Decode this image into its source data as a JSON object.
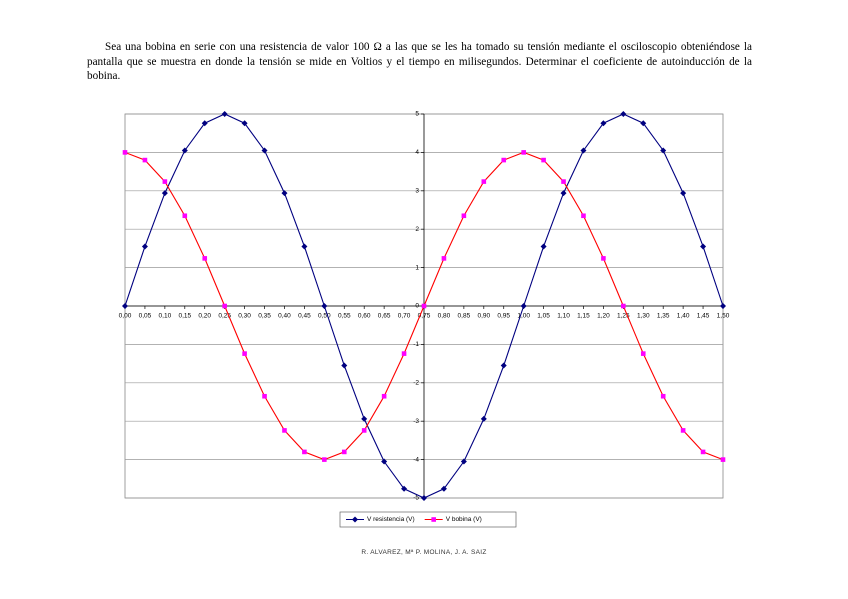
{
  "text": "Sea una bobina en serie con una resistencia de valor 100 Ω a las que se les ha tomado su tensión mediante el osciloscopio obteniéndose la pantalla que se muestra en donde la tensión se mide en Voltios y el tiempo en milisegundos. Determinar el coeficiente de autoinducción de la bobina.",
  "footer": "R. ALVAREZ, Mª P. MOLINA, J. A. SAIZ",
  "chart_data": {
    "type": "line",
    "categories": [
      "0,00",
      "0,05",
      "0,10",
      "0,15",
      "0,20",
      "0,25",
      "0,30",
      "0,35",
      "0,40",
      "0,45",
      "0,50",
      "0,55",
      "0,60",
      "0,65",
      "0,70",
      "0,75",
      "0,80",
      "0,85",
      "0,90",
      "0,95",
      "1,00",
      "1,05",
      "1,10",
      "1,15",
      "1,20",
      "1,25",
      "1,30",
      "1,35",
      "1,40",
      "1,45",
      "1,50"
    ],
    "series": [
      {
        "name": "V resistencia (V)",
        "color": "#000080",
        "marker": "diamond",
        "marker_color": "#000080",
        "values": [
          0,
          1.55,
          2.94,
          4.05,
          4.76,
          5,
          4.76,
          4.05,
          2.94,
          1.55,
          0,
          -1.55,
          -2.94,
          -4.05,
          -4.76,
          -5,
          -4.76,
          -4.05,
          -2.94,
          -1.55,
          0,
          1.55,
          2.94,
          4.05,
          4.76,
          5,
          4.76,
          4.05,
          2.94,
          1.55,
          0
        ]
      },
      {
        "name": "V bobina (V)",
        "color": "#ff0000",
        "marker": "square",
        "marker_color": "#ff00ff",
        "values": [
          4,
          3.8,
          3.24,
          2.35,
          1.24,
          0,
          -1.24,
          -2.35,
          -3.24,
          -3.8,
          -4,
          -3.8,
          -3.24,
          -2.35,
          -1.24,
          0,
          1.24,
          2.35,
          3.24,
          3.8,
          4,
          3.8,
          3.24,
          2.35,
          1.24,
          0,
          -1.24,
          -2.35,
          -3.24,
          -3.8,
          -4
        ]
      }
    ],
    "ylim": [
      -5,
      5
    ],
    "yticks": [
      -5,
      -4,
      -3,
      -2,
      -1,
      0,
      1,
      2,
      3,
      4,
      5
    ],
    "grid": true,
    "legend": "bottom"
  }
}
